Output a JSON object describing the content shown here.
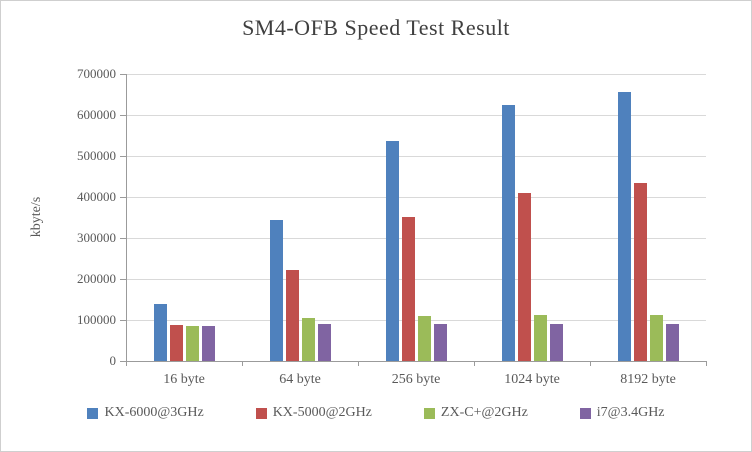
{
  "chart_data": {
    "type": "bar",
    "title": "SM4-OFB Speed Test Result",
    "xlabel": "",
    "ylabel": "kbyte/s",
    "categories": [
      "16 byte",
      "64 byte",
      "256 byte",
      "1024 byte",
      "8192 byte"
    ],
    "series": [
      {
        "name": "KX-6000@3GHz",
        "color": "#4F81BD",
        "values": [
          140000,
          345000,
          537000,
          625000,
          655000
        ]
      },
      {
        "name": "KX-5000@2GHz",
        "color": "#C0504D",
        "values": [
          88000,
          222000,
          352000,
          410000,
          435000
        ]
      },
      {
        "name": "ZX-C+@2GHz",
        "color": "#9BBB59",
        "values": [
          85000,
          105000,
          110000,
          112000,
          112000
        ]
      },
      {
        "name": "i7@3.4GHz",
        "color": "#8064A2",
        "values": [
          85000,
          90000,
          90000,
          90000,
          90000
        ]
      }
    ],
    "ylim": [
      0,
      700000
    ],
    "yticks": [
      0,
      100000,
      200000,
      300000,
      400000,
      500000,
      600000,
      700000
    ],
    "grid": true,
    "legend_position": "bottom",
    "colors": {
      "gridline": "#d9d9d9",
      "axis": "#9b9b9b",
      "tick_text": "#595959",
      "title_text": "#3f3f3f"
    }
  }
}
